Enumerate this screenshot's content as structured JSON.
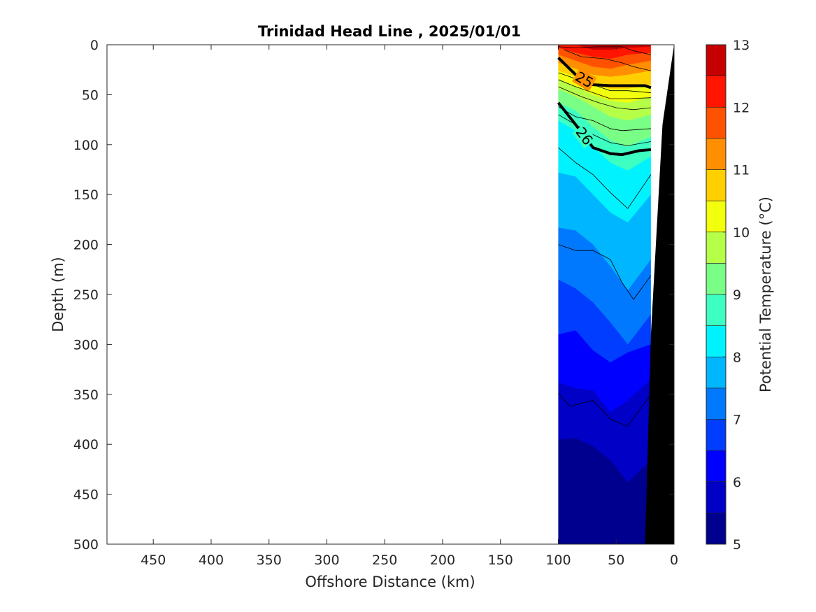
{
  "chart_data": {
    "type": "heatmap",
    "title": "Trinidad Head Line , 2025/01/01",
    "xlabel": "Offshore Distance (km)",
    "ylabel": "Depth (m)",
    "colorbar_label": "Potential Temperature (°C)",
    "x_reversed": true,
    "y_reversed": true,
    "xlim": [
      0,
      490
    ],
    "ylim": [
      0,
      500
    ],
    "xticks": [
      450,
      400,
      350,
      300,
      250,
      200,
      150,
      100,
      50,
      0
    ],
    "yticks": [
      0,
      50,
      100,
      150,
      200,
      250,
      300,
      350,
      400,
      450,
      500
    ],
    "colorbar": {
      "min": 5,
      "max": 13,
      "step": 0.5,
      "ticks": [
        5,
        6,
        7,
        8,
        9,
        10,
        11,
        12,
        13
      ],
      "colors": [
        "#00008f",
        "#0000c6",
        "#0000fe",
        "#003dff",
        "#0079ff",
        "#00b6ff",
        "#00f2ff",
        "#3dffc2",
        "#79ff86",
        "#b6ff49",
        "#f2ff0d",
        "#ffcf00",
        "#ff8e00",
        "#ff5200",
        "#ff1500",
        "#c60000"
      ]
    },
    "section_x_range": [
      100,
      20
    ],
    "stations_km": [
      100,
      85,
      70,
      55,
      40,
      20
    ],
    "temperature_isoline_depths": [
      {
        "level": 12.5,
        "depths": [
          0,
          0,
          5,
          5,
          3,
          2
        ]
      },
      {
        "level": 12.0,
        "depths": [
          3,
          8,
          12,
          14,
          10,
          8
        ]
      },
      {
        "level": 11.5,
        "depths": [
          10,
          16,
          22,
          24,
          20,
          16
        ]
      },
      {
        "level": 11.0,
        "depths": [
          18,
          24,
          30,
          32,
          30,
          26
        ]
      },
      {
        "level": 10.5,
        "depths": [
          26,
          32,
          40,
          44,
          44,
          40
        ]
      },
      {
        "level": 10.0,
        "depths": [
          34,
          42,
          50,
          56,
          58,
          52
        ]
      },
      {
        "level": 9.5,
        "depths": [
          44,
          52,
          62,
          72,
          76,
          70
        ]
      },
      {
        "level": 9.0,
        "depths": [
          58,
          66,
          82,
          96,
          102,
          92
        ]
      },
      {
        "level": 8.5,
        "depths": [
          76,
          86,
          102,
          118,
          126,
          112
        ]
      },
      {
        "level": 8.0,
        "depths": [
          128,
          132,
          150,
          168,
          178,
          150
        ]
      },
      {
        "level": 7.5,
        "depths": [
          183,
          186,
          200,
          222,
          246,
          215
        ]
      },
      {
        "level": 7.0,
        "depths": [
          235,
          244,
          258,
          278,
          300,
          270
        ]
      },
      {
        "level": 6.5,
        "depths": [
          290,
          286,
          306,
          318,
          308,
          300
        ]
      },
      {
        "level": 6.0,
        "depths": [
          338,
          344,
          346,
          368,
          356,
          335
        ]
      },
      {
        "level": 5.5,
        "depths": [
          395,
          394,
          402,
          416,
          438,
          416
        ]
      },
      {
        "level": 5.0,
        "depths": [
          470,
          474,
          500,
          500,
          500,
          500
        ]
      }
    ],
    "density_contours": [
      {
        "label": "25",
        "points": [
          [
            100,
            13
          ],
          [
            85,
            30
          ],
          [
            70,
            40
          ],
          [
            55,
            41
          ],
          [
            40,
            41
          ],
          [
            25,
            41
          ],
          [
            20,
            43
          ]
        ]
      },
      {
        "label": "26",
        "points": [
          [
            100,
            58
          ],
          [
            85,
            80
          ],
          [
            70,
            103
          ],
          [
            55,
            109
          ],
          [
            45,
            110
          ],
          [
            30,
            106
          ],
          [
            20,
            105
          ]
        ]
      }
    ],
    "thin_contours": [
      [
        [
          100,
          2
        ],
        [
          85,
          3
        ],
        [
          65,
          2
        ],
        [
          45,
          2
        ],
        [
          35,
          6
        ],
        [
          20,
          10
        ]
      ],
      [
        [
          95,
          5
        ],
        [
          80,
          12
        ],
        [
          60,
          14
        ],
        [
          45,
          18
        ],
        [
          35,
          22
        ],
        [
          20,
          26
        ]
      ],
      [
        [
          100,
          28
        ],
        [
          85,
          34
        ],
        [
          70,
          40
        ],
        [
          55,
          46
        ],
        [
          40,
          46
        ],
        [
          20,
          48
        ]
      ],
      [
        [
          100,
          35
        ],
        [
          85,
          42
        ],
        [
          70,
          48
        ],
        [
          55,
          54
        ],
        [
          40,
          54
        ],
        [
          20,
          53
        ]
      ],
      [
        [
          100,
          42
        ],
        [
          80,
          52
        ],
        [
          65,
          58
        ],
        [
          50,
          63
        ],
        [
          35,
          65
        ],
        [
          20,
          63
        ]
      ],
      [
        [
          100,
          62
        ],
        [
          85,
          72
        ],
        [
          70,
          76
        ],
        [
          55,
          84
        ],
        [
          45,
          86
        ],
        [
          20,
          84
        ]
      ],
      [
        [
          100,
          70
        ],
        [
          85,
          80
        ],
        [
          70,
          90
        ],
        [
          55,
          98
        ],
        [
          40,
          101
        ],
        [
          20,
          97
        ]
      ],
      [
        [
          100,
          103
        ],
        [
          85,
          118
        ],
        [
          70,
          130
        ],
        [
          55,
          148
        ],
        [
          40,
          164
        ],
        [
          20,
          130
        ]
      ],
      [
        [
          100,
          200
        ],
        [
          85,
          206
        ],
        [
          70,
          206
        ],
        [
          55,
          215
        ],
        [
          45,
          238
        ],
        [
          35,
          255
        ],
        [
          20,
          231
        ]
      ],
      [
        [
          100,
          349
        ],
        [
          90,
          362
        ],
        [
          70,
          356
        ],
        [
          55,
          375
        ],
        [
          40,
          382
        ],
        [
          20,
          350
        ]
      ]
    ],
    "bathymetry_km": [
      [
        0,
        0
      ],
      [
        10,
        80
      ],
      [
        20,
        290
      ],
      [
        25,
        500
      ]
    ],
    "no_data_wedge_km": [
      [
        20,
        0
      ],
      [
        0,
        0
      ],
      [
        20,
        290
      ]
    ]
  }
}
